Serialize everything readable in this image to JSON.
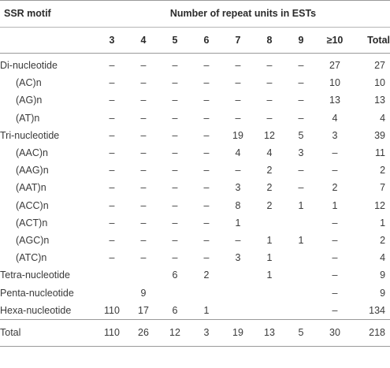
{
  "table": {
    "motif_header": "SSR motif",
    "group_header": "Number of repeat units in ESTs",
    "columns": [
      "3",
      "4",
      "5",
      "6",
      "7",
      "8",
      "9",
      "≥10",
      "Total"
    ],
    "rows": [
      {
        "label": "Di-nucleotide",
        "indent": false,
        "cells": [
          "–",
          "–",
          "–",
          "–",
          "–",
          "–",
          "–",
          "27",
          "27"
        ]
      },
      {
        "label": "(AC)n",
        "indent": true,
        "cells": [
          "–",
          "–",
          "–",
          "–",
          "–",
          "–",
          "–",
          "10",
          "10"
        ]
      },
      {
        "label": "(AG)n",
        "indent": true,
        "cells": [
          "–",
          "–",
          "–",
          "–",
          "–",
          "–",
          "–",
          "13",
          "13"
        ]
      },
      {
        "label": "(AT)n",
        "indent": true,
        "cells": [
          "–",
          "–",
          "–",
          "–",
          "–",
          "–",
          "–",
          "4",
          "4"
        ]
      },
      {
        "label": "Tri-nucleotide",
        "indent": false,
        "cells": [
          "–",
          "–",
          "–",
          "–",
          "19",
          "12",
          "5",
          "3",
          "39"
        ]
      },
      {
        "label": "(AAC)n",
        "indent": true,
        "cells": [
          "–",
          "–",
          "–",
          "–",
          "4",
          "4",
          "3",
          "–",
          "11"
        ]
      },
      {
        "label": "(AAG)n",
        "indent": true,
        "cells": [
          "–",
          "–",
          "–",
          "–",
          "–",
          "2",
          "–",
          "–",
          "2"
        ]
      },
      {
        "label": "(AAT)n",
        "indent": true,
        "cells": [
          "–",
          "–",
          "–",
          "–",
          "3",
          "2",
          "–",
          "2",
          "7"
        ]
      },
      {
        "label": "(ACC)n",
        "indent": true,
        "cells": [
          "–",
          "–",
          "–",
          "–",
          "8",
          "2",
          "1",
          "1",
          "12"
        ]
      },
      {
        "label": "(ACT)n",
        "indent": true,
        "cells": [
          "–",
          "–",
          "–",
          "–",
          "1",
          "",
          "",
          "–",
          "1"
        ]
      },
      {
        "label": "(AGC)n",
        "indent": true,
        "cells": [
          "–",
          "–",
          "–",
          "–",
          "–",
          "1",
          "1",
          "–",
          "2"
        ]
      },
      {
        "label": "(ATC)n",
        "indent": true,
        "cells": [
          "–",
          "–",
          "–",
          "–",
          "3",
          "1",
          "",
          "–",
          "4"
        ]
      },
      {
        "label": "Tetra-nucleotide",
        "indent": false,
        "cells": [
          "",
          "",
          "6",
          "2",
          "",
          "1",
          "",
          "–",
          "9"
        ]
      },
      {
        "label": "Penta-nucleotide",
        "indent": false,
        "cells": [
          "",
          "9",
          "",
          "",
          "",
          "",
          "",
          "–",
          "9"
        ]
      },
      {
        "label": "Hexa-nucleotide",
        "indent": false,
        "cells": [
          "110",
          "17",
          "6",
          "1",
          "",
          "",
          "",
          "–",
          "134"
        ]
      }
    ],
    "total": {
      "label": "Total",
      "cells": [
        "110",
        "26",
        "12",
        "3",
        "19",
        "13",
        "5",
        "30",
        "218"
      ]
    }
  }
}
